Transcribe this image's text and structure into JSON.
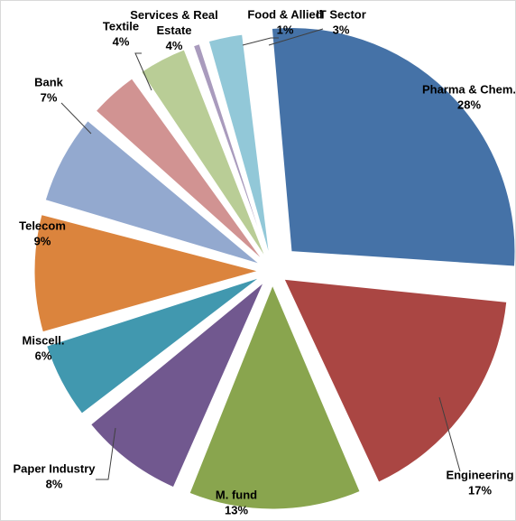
{
  "chart_data": {
    "type": "pie",
    "style": "exploded",
    "slices": [
      {
        "label": "Pharma & Chem.",
        "value": 28,
        "value_label": "28%",
        "color": "#4572a7"
      },
      {
        "label": "Engineering",
        "value": 17,
        "value_label": "17%",
        "color": "#aa4643"
      },
      {
        "label": "M. fund",
        "value": 13,
        "value_label": "13%",
        "color": "#89a54e"
      },
      {
        "label": "Paper Industry",
        "value": 8,
        "value_label": "8%",
        "color": "#71588f"
      },
      {
        "label": "Miscell.",
        "value": 6,
        "value_label": "6%",
        "color": "#4198af"
      },
      {
        "label": "Telecom",
        "value": 9,
        "value_label": "9%",
        "color": "#db843d"
      },
      {
        "label": "Bank",
        "value": 7,
        "value_label": "7%",
        "color": "#93a9cf"
      },
      {
        "label": "Textile",
        "value": 4,
        "value_label": "4%",
        "color": "#d19392"
      },
      {
        "label": "Services & Real Estate",
        "value": 4,
        "value_label": "4%",
        "color": "#b9cd96"
      },
      {
        "label": "Food & Allied",
        "value": 1,
        "value_label": "1%",
        "color": "#a99bbd"
      },
      {
        "label": "IT Sector",
        "value": 3,
        "value_label": "3%",
        "color": "#92c8d8"
      }
    ]
  }
}
